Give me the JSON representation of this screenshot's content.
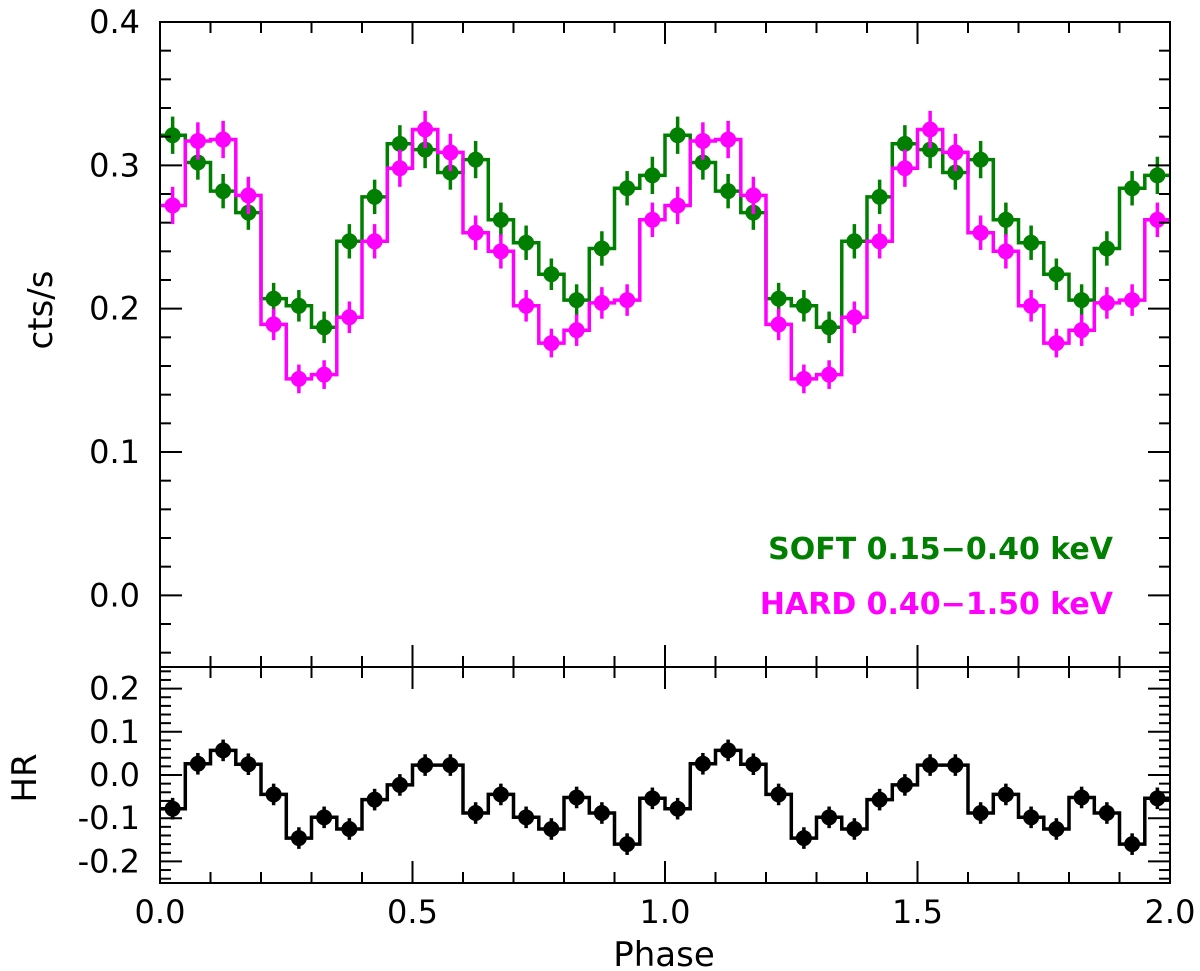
{
  "chart_data": [
    {
      "type": "line",
      "style": "step-with-errorbars",
      "title": "",
      "xlabel": "",
      "ylabel": "cts/s",
      "xlim": [
        0.0,
        2.0
      ],
      "ylim": [
        -0.05,
        0.4
      ],
      "yticks": [
        "0.0",
        "0.1",
        "0.2",
        "0.3",
        "0.4"
      ],
      "x": [
        0.025,
        0.075,
        0.125,
        0.175,
        0.225,
        0.275,
        0.325,
        0.375,
        0.425,
        0.475,
        0.525,
        0.575,
        0.625,
        0.675,
        0.725,
        0.775,
        0.825,
        0.875,
        0.925,
        0.975,
        1.025,
        1.075,
        1.125,
        1.175,
        1.225,
        1.275,
        1.325,
        1.375,
        1.425,
        1.475,
        1.525,
        1.575,
        1.625,
        1.675,
        1.725,
        1.775,
        1.825,
        1.875,
        1.925,
        1.975
      ],
      "series": [
        {
          "name": "SOFT 0.15−0.40 keV",
          "color": "#007f00",
          "values": [
            0.321,
            0.302,
            0.282,
            0.267,
            0.207,
            0.202,
            0.187,
            0.247,
            0.278,
            0.315,
            0.311,
            0.295,
            0.304,
            0.262,
            0.246,
            0.224,
            0.206,
            0.242,
            0.284,
            0.293,
            0.321,
            0.302,
            0.282,
            0.267,
            0.207,
            0.202,
            0.187,
            0.247,
            0.278,
            0.315,
            0.311,
            0.295,
            0.304,
            0.262,
            0.246,
            0.224,
            0.206,
            0.242,
            0.284,
            0.293
          ],
          "errors": [
            0.013,
            0.012,
            0.012,
            0.012,
            0.011,
            0.011,
            0.011,
            0.012,
            0.012,
            0.013,
            0.013,
            0.012,
            0.013,
            0.012,
            0.012,
            0.011,
            0.011,
            0.012,
            0.012,
            0.013,
            0.013,
            0.012,
            0.012,
            0.012,
            0.011,
            0.011,
            0.011,
            0.012,
            0.012,
            0.013,
            0.013,
            0.012,
            0.013,
            0.012,
            0.012,
            0.011,
            0.011,
            0.012,
            0.012,
            0.013
          ]
        },
        {
          "name": "HARD 0.40−1.50 keV",
          "color": "#ff00ff",
          "values": [
            0.272,
            0.317,
            0.318,
            0.279,
            0.189,
            0.151,
            0.154,
            0.194,
            0.247,
            0.298,
            0.325,
            0.309,
            0.253,
            0.24,
            0.202,
            0.176,
            0.185,
            0.204,
            0.206,
            0.262,
            0.272,
            0.317,
            0.318,
            0.279,
            0.189,
            0.151,
            0.154,
            0.194,
            0.247,
            0.298,
            0.325,
            0.309,
            0.253,
            0.24,
            0.202,
            0.176,
            0.185,
            0.204,
            0.206,
            0.262
          ],
          "errors": [
            0.013,
            0.013,
            0.013,
            0.013,
            0.011,
            0.01,
            0.01,
            0.011,
            0.012,
            0.013,
            0.013,
            0.013,
            0.012,
            0.012,
            0.011,
            0.01,
            0.011,
            0.011,
            0.011,
            0.012,
            0.013,
            0.013,
            0.013,
            0.013,
            0.011,
            0.01,
            0.01,
            0.011,
            0.012,
            0.013,
            0.013,
            0.013,
            0.012,
            0.012,
            0.011,
            0.01,
            0.011,
            0.011,
            0.011,
            0.012
          ]
        }
      ],
      "legend": {
        "placement": "bottom-right",
        "entries": [
          "SOFT 0.15−0.40 keV",
          "HARD 0.40−1.50 keV"
        ]
      }
    },
    {
      "type": "line",
      "style": "step-with-errorbars",
      "title": "",
      "xlabel": "Phase",
      "ylabel": "HR",
      "xlim": [
        0.0,
        2.0
      ],
      "ylim": [
        -0.25,
        0.25
      ],
      "yticks": [
        "0.2",
        "0.1",
        "0.0",
        "-0.1",
        "-0.2"
      ],
      "xticks": [
        "0.0",
        "0.5",
        "1.0",
        "1.5",
        "2.0"
      ],
      "x": [
        0.025,
        0.075,
        0.125,
        0.175,
        0.225,
        0.275,
        0.325,
        0.375,
        0.425,
        0.475,
        0.525,
        0.575,
        0.625,
        0.675,
        0.725,
        0.775,
        0.825,
        0.875,
        0.925,
        0.975,
        1.025,
        1.075,
        1.125,
        1.175,
        1.225,
        1.275,
        1.325,
        1.375,
        1.425,
        1.475,
        1.525,
        1.575,
        1.625,
        1.675,
        1.725,
        1.775,
        1.825,
        1.875,
        1.925,
        1.975
      ],
      "series": [
        {
          "name": "HR",
          "color": "#000000",
          "values": [
            -0.078,
            0.026,
            0.057,
            0.025,
            -0.045,
            -0.146,
            -0.098,
            -0.125,
            -0.057,
            -0.023,
            0.023,
            0.023,
            -0.088,
            -0.045,
            -0.098,
            -0.125,
            -0.052,
            -0.088,
            -0.16,
            -0.054,
            -0.078,
            0.026,
            0.057,
            0.025,
            -0.045,
            -0.146,
            -0.098,
            -0.125,
            -0.057,
            -0.023,
            0.023,
            0.023,
            -0.088,
            -0.045,
            -0.098,
            -0.125,
            -0.052,
            -0.088,
            -0.16,
            -0.054
          ],
          "errors": [
            0.025,
            0.025,
            0.025,
            0.025,
            0.025,
            0.025,
            0.025,
            0.025,
            0.025,
            0.025,
            0.025,
            0.025,
            0.025,
            0.025,
            0.025,
            0.025,
            0.025,
            0.025,
            0.025,
            0.025,
            0.025,
            0.025,
            0.025,
            0.025,
            0.025,
            0.025,
            0.025,
            0.025,
            0.025,
            0.025,
            0.025,
            0.025,
            0.025,
            0.025,
            0.025,
            0.025,
            0.025,
            0.025,
            0.025,
            0.025
          ]
        }
      ]
    }
  ]
}
